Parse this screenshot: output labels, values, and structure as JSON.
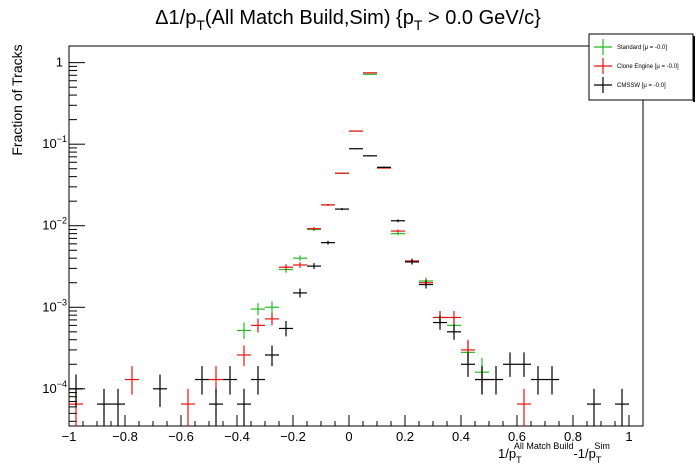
{
  "chart_data": {
    "type": "scatter",
    "title": {
      "prefix": "Δ1/p",
      "sub1": "T",
      "mid": "(All Match Build,Sim) {p",
      "sub2": "T",
      "suffix": " > 0.0 GeV/c}"
    },
    "ylabel": "Fraction of Tracks",
    "xlabel": {
      "base1": "1/p",
      "sub1": "T",
      "sup1": "All Match Build",
      "base2": "-1/p",
      "sub2": "T",
      "sup2": "Sim"
    },
    "xlim": [
      -1.0,
      1.05
    ],
    "ylim": [
      3.5e-05,
      1.6
    ],
    "yscale": "log",
    "bin_width": 0.05,
    "x_ticks": [
      {
        "v": -1.0,
        "label": "−1"
      },
      {
        "v": -0.8,
        "label": "−0.8"
      },
      {
        "v": -0.6,
        "label": "−0.6"
      },
      {
        "v": -0.4,
        "label": "−0.4"
      },
      {
        "v": -0.2,
        "label": "−0.2"
      },
      {
        "v": 0.0,
        "label": "0"
      },
      {
        "v": 0.2,
        "label": "0.2"
      },
      {
        "v": 0.4,
        "label": "0.4"
      },
      {
        "v": 0.6,
        "label": "0.6"
      },
      {
        "v": 0.8,
        "label": "0.8"
      },
      {
        "v": 1.0,
        "label": "1"
      }
    ],
    "y_ticks": [
      {
        "v": 0.0001,
        "base": "10",
        "exp": "−4"
      },
      {
        "v": 0.001,
        "base": "10",
        "exp": "−3"
      },
      {
        "v": 0.01,
        "base": "10",
        "exp": "−2"
      },
      {
        "v": 0.1,
        "base": "10",
        "exp": "−1"
      },
      {
        "v": 1,
        "base": "1",
        "exp": ""
      }
    ],
    "series": [
      {
        "name": "Standard",
        "legend_label": "Standard  [μ = -0.0]",
        "color": "#22bb22",
        "points": [
          {
            "x": -0.375,
            "y": 0.00052,
            "lo": 0.00041,
            "hi": 0.00065
          },
          {
            "x": -0.325,
            "y": 0.00095,
            "lo": 0.0008,
            "hi": 0.00112
          },
          {
            "x": -0.275,
            "y": 0.001,
            "lo": 0.00085,
            "hi": 0.00118
          },
          {
            "x": -0.225,
            "y": 0.0029,
            "lo": 0.00265,
            "hi": 0.00318
          },
          {
            "x": -0.175,
            "y": 0.004,
            "lo": 0.0037,
            "hi": 0.00432
          },
          {
            "x": -0.125,
            "y": 0.009,
            "lo": 0.0086,
            "hi": 0.00945
          },
          {
            "x": -0.075,
            "y": 0.018,
            "lo": 0.0175,
            "hi": 0.0185
          },
          {
            "x": -0.025,
            "y": 0.044,
            "lo": 0.0432,
            "hi": 0.0448
          },
          {
            "x": 0.025,
            "y": 0.145,
            "lo": 0.144,
            "hi": 0.146
          },
          {
            "x": 0.075,
            "y": 0.72,
            "lo": 0.718,
            "hi": 0.722
          },
          {
            "x": 0.125,
            "y": 0.052,
            "lo": 0.0512,
            "hi": 0.0528
          },
          {
            "x": 0.175,
            "y": 0.008,
            "lo": 0.00765,
            "hi": 0.00838
          },
          {
            "x": 0.225,
            "y": 0.0036,
            "lo": 0.00335,
            "hi": 0.00388
          },
          {
            "x": 0.275,
            "y": 0.0021,
            "lo": 0.0019,
            "hi": 0.00232
          },
          {
            "x": 0.325,
            "y": 0.00075,
            "lo": 0.00062,
            "hi": 0.0009
          },
          {
            "x": 0.375,
            "y": 0.0006,
            "lo": 0.00048,
            "hi": 0.00074
          },
          {
            "x": 0.425,
            "y": 0.00028,
            "lo": 0.0002,
            "hi": 0.00038
          },
          {
            "x": 0.475,
            "y": 0.00016,
            "lo": 0.0001,
            "hi": 0.00024
          }
        ]
      },
      {
        "name": "Clone Engine",
        "legend_label": "Clone Engine  [μ = -0.0]",
        "color": "#ee1111",
        "points": [
          {
            "x": -0.975,
            "y": 6.5e-05,
            "lo": 3.5e-05,
            "hi": 0.0001
          },
          {
            "x": -0.775,
            "y": 0.00013,
            "lo": 8.5e-05,
            "hi": 0.00019
          },
          {
            "x": -0.575,
            "y": 6.5e-05,
            "lo": 3.5e-05,
            "hi": 0.0001
          },
          {
            "x": -0.475,
            "y": 0.00013,
            "lo": 8.5e-05,
            "hi": 0.00019
          },
          {
            "x": -0.375,
            "y": 0.00026,
            "lo": 0.00019,
            "hi": 0.00034
          },
          {
            "x": -0.325,
            "y": 0.0006,
            "lo": 0.00049,
            "hi": 0.00073
          },
          {
            "x": -0.275,
            "y": 0.00072,
            "lo": 0.0006,
            "hi": 0.00086
          },
          {
            "x": -0.225,
            "y": 0.0031,
            "lo": 0.00285,
            "hi": 0.00338
          },
          {
            "x": -0.175,
            "y": 0.0033,
            "lo": 0.00305,
            "hi": 0.00358
          },
          {
            "x": -0.125,
            "y": 0.0092,
            "lo": 0.0088,
            "hi": 0.00962
          },
          {
            "x": -0.075,
            "y": 0.018,
            "lo": 0.0175,
            "hi": 0.0185
          },
          {
            "x": -0.025,
            "y": 0.044,
            "lo": 0.0432,
            "hi": 0.0448
          },
          {
            "x": 0.025,
            "y": 0.145,
            "lo": 0.144,
            "hi": 0.146
          },
          {
            "x": 0.075,
            "y": 0.75,
            "lo": 0.748,
            "hi": 0.752
          },
          {
            "x": 0.125,
            "y": 0.051,
            "lo": 0.0502,
            "hi": 0.0518
          },
          {
            "x": 0.175,
            "y": 0.0086,
            "lo": 0.00822,
            "hi": 0.009
          },
          {
            "x": 0.225,
            "y": 0.0037,
            "lo": 0.00345,
            "hi": 0.00398
          },
          {
            "x": 0.275,
            "y": 0.002,
            "lo": 0.0018,
            "hi": 0.00222
          },
          {
            "x": 0.325,
            "y": 0.00075,
            "lo": 0.00062,
            "hi": 0.0009
          },
          {
            "x": 0.375,
            "y": 0.00075,
            "lo": 0.00062,
            "hi": 0.0009
          },
          {
            "x": 0.425,
            "y": 0.0003,
            "lo": 0.00022,
            "hi": 0.0004
          },
          {
            "x": 0.475,
            "y": 0.00013,
            "lo": 8.5e-05,
            "hi": 0.00019
          },
          {
            "x": 0.625,
            "y": 6.5e-05,
            "lo": 3.5e-05,
            "hi": 0.0001
          }
        ]
      },
      {
        "name": "CMSSW",
        "legend_label": "CMSSW  [μ = -0.0]",
        "color": "#000000",
        "points": [
          {
            "x": -0.975,
            "y": 0.0001,
            "lo": 6e-05,
            "hi": 0.00015
          },
          {
            "x": -0.875,
            "y": 6.5e-05,
            "lo": 3.5e-05,
            "hi": 0.0001
          },
          {
            "x": -0.825,
            "y": 6.5e-05,
            "lo": 3.5e-05,
            "hi": 0.0001
          },
          {
            "x": -0.675,
            "y": 0.0001,
            "lo": 6e-05,
            "hi": 0.00015
          },
          {
            "x": -0.525,
            "y": 0.00013,
            "lo": 8.5e-05,
            "hi": 0.00019
          },
          {
            "x": -0.475,
            "y": 6.5e-05,
            "lo": 3.5e-05,
            "hi": 0.0001
          },
          {
            "x": -0.425,
            "y": 0.00013,
            "lo": 8.5e-05,
            "hi": 0.00019
          },
          {
            "x": -0.375,
            "y": 6.5e-05,
            "lo": 3.5e-05,
            "hi": 0.0001
          },
          {
            "x": -0.325,
            "y": 0.00013,
            "lo": 8.5e-05,
            "hi": 0.00019
          },
          {
            "x": -0.275,
            "y": 0.00026,
            "lo": 0.00019,
            "hi": 0.00034
          },
          {
            "x": -0.225,
            "y": 0.00055,
            "lo": 0.00044,
            "hi": 0.00068
          },
          {
            "x": -0.175,
            "y": 0.0015,
            "lo": 0.00132,
            "hi": 0.0017
          },
          {
            "x": -0.125,
            "y": 0.0032,
            "lo": 0.00295,
            "hi": 0.00348
          },
          {
            "x": -0.075,
            "y": 0.0062,
            "lo": 0.00588,
            "hi": 0.00654
          },
          {
            "x": -0.025,
            "y": 0.016,
            "lo": 0.0155,
            "hi": 0.0165
          },
          {
            "x": 0.025,
            "y": 0.088,
            "lo": 0.0868,
            "hi": 0.0892
          },
          {
            "x": 0.075,
            "y": 0.072,
            "lo": 0.0709,
            "hi": 0.0731
          },
          {
            "x": 0.125,
            "y": 0.052,
            "lo": 0.0512,
            "hi": 0.0528
          },
          {
            "x": 0.175,
            "y": 0.0115,
            "lo": 0.01105,
            "hi": 0.01195
          },
          {
            "x": 0.225,
            "y": 0.0036,
            "lo": 0.00335,
            "hi": 0.00388
          },
          {
            "x": 0.275,
            "y": 0.0019,
            "lo": 0.0017,
            "hi": 0.00212
          },
          {
            "x": 0.325,
            "y": 0.00065,
            "lo": 0.00053,
            "hi": 0.00079
          },
          {
            "x": 0.375,
            "y": 0.0005,
            "lo": 0.0004,
            "hi": 0.00062
          },
          {
            "x": 0.425,
            "y": 0.0002,
            "lo": 0.00014,
            "hi": 0.00028
          },
          {
            "x": 0.475,
            "y": 0.00013,
            "lo": 8.5e-05,
            "hi": 0.00019
          },
          {
            "x": 0.525,
            "y": 0.00013,
            "lo": 8.5e-05,
            "hi": 0.00019
          },
          {
            "x": 0.575,
            "y": 0.0002,
            "lo": 0.00014,
            "hi": 0.00028
          },
          {
            "x": 0.625,
            "y": 0.0002,
            "lo": 0.00014,
            "hi": 0.00028
          },
          {
            "x": 0.675,
            "y": 0.00013,
            "lo": 8.5e-05,
            "hi": 0.00019
          },
          {
            "x": 0.725,
            "y": 0.00013,
            "lo": 8.5e-05,
            "hi": 0.00019
          },
          {
            "x": 0.875,
            "y": 6.5e-05,
            "lo": 3.5e-05,
            "hi": 0.0001
          },
          {
            "x": 0.975,
            "y": 6.5e-05,
            "lo": 3.5e-05,
            "hi": 0.0001
          }
        ]
      }
    ],
    "legend": {
      "placement": "top-right"
    },
    "grid": false
  }
}
